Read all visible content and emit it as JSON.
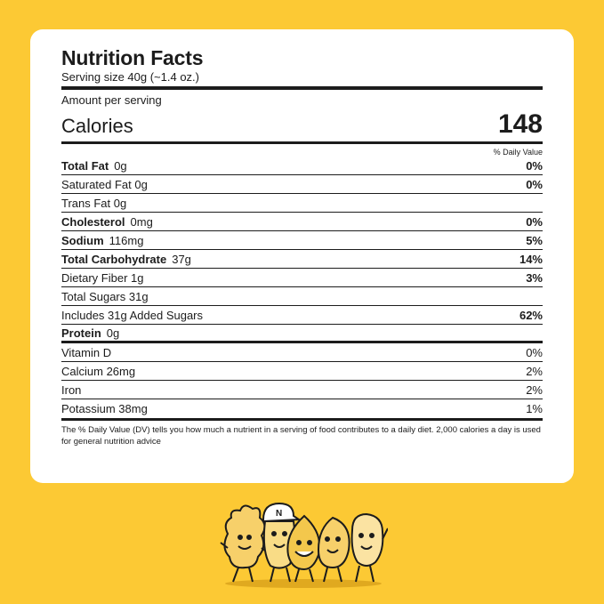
{
  "label": {
    "title": "Nutrition Facts",
    "serving_size": "Serving size 40g (~1.4 oz.)",
    "amount_per_serving": "Amount per serving",
    "calories_label": "Calories",
    "calories_value": "148",
    "daily_value_header": "% Daily Value"
  },
  "nutrients": [
    {
      "name": "Total Fat",
      "amount": "0g",
      "dv": "0%"
    },
    {
      "name": "Saturated Fat 0g",
      "amount": "",
      "dv": "0%"
    },
    {
      "name": "Trans Fat 0g",
      "amount": "",
      "dv": ""
    },
    {
      "name": "Cholesterol",
      "amount": "0mg",
      "dv": "0%"
    },
    {
      "name": "Sodium",
      "amount": "116mg",
      "dv": "5%"
    },
    {
      "name": "Total Carbohydrate",
      "amount": "37g",
      "dv": "14%"
    },
    {
      "name": "Dietary Fiber 1g",
      "amount": "",
      "dv": "3%"
    },
    {
      "name": "Total Sugars 31g",
      "amount": "",
      "dv": ""
    },
    {
      "name": "Includes 31g Added Sugars",
      "amount": "",
      "dv": "62%"
    },
    {
      "name": "Protein",
      "amount": "0g",
      "dv": ""
    }
  ],
  "vitamins": [
    {
      "name": "Vitamin D",
      "dv": "0%"
    },
    {
      "name": "Calcium 26mg",
      "dv": "2%"
    },
    {
      "name": "Iron",
      "dv": "2%"
    },
    {
      "name": "Potassium 38mg",
      "dv": "1%"
    }
  ],
  "footnote": "The % Daily Value (DV) tells you how much a nutrient in a serving of food contributes to a daily diet. 2,000 calories a day is used for general nutrition advice",
  "colors": {
    "background": "#fcc934",
    "card": "#ffffff",
    "text": "#1c1c1c"
  },
  "mascot_icon": "snack-characters-illustration"
}
